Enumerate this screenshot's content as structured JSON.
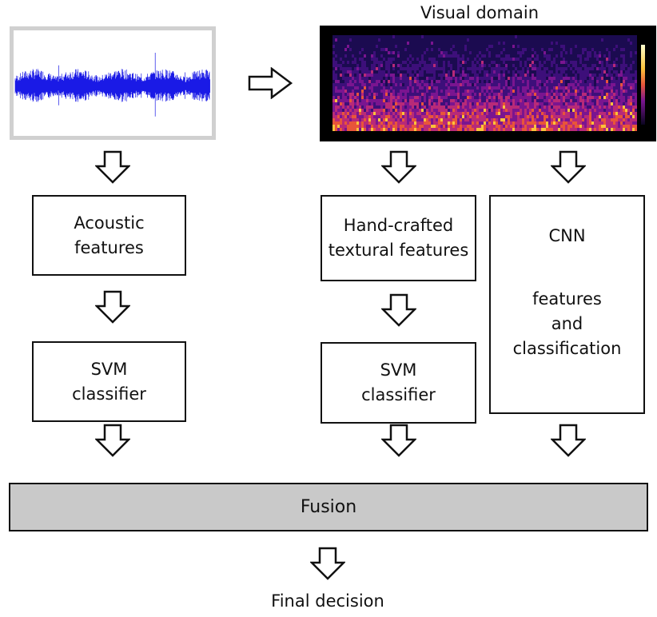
{
  "header": {
    "visual_domain": "Visual domain"
  },
  "acoustic_branch": {
    "features": [
      "Acoustic",
      "features"
    ],
    "classifier": [
      "SVM",
      "classifier"
    ]
  },
  "texture_branch": {
    "features": [
      "Hand-crafted",
      "textural features"
    ],
    "classifier": [
      "SVM",
      "classifier"
    ]
  },
  "cnn_branch": {
    "title": "CNN",
    "subtitle": [
      "features",
      "and",
      "classification"
    ]
  },
  "fusion": {
    "label": "Fusion"
  },
  "output": {
    "label": "Final decision"
  },
  "colors": {
    "waveform": "#1a1ae6",
    "fusion_fill": "#c9c9c9",
    "border": "#111111"
  },
  "icons": {
    "down_arrow": "hollow-down-arrow-icon",
    "right_arrow": "hollow-right-arrow-icon"
  }
}
